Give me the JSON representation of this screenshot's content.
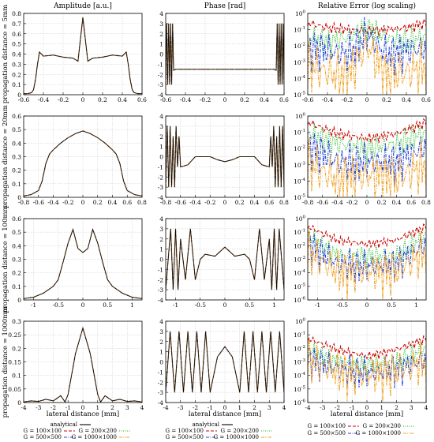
{
  "column_titles": [
    "Amplitude [a.u.]",
    "Phase [rad]",
    "Relative Error (log scaling)"
  ],
  "row_labels": [
    "propagation distance = 5mm",
    "propagation distance = 20mm",
    "propagation distance = 100mm",
    "propagation distance = 1000mm"
  ],
  "xlabel": "lateral distance [mm]",
  "colors": {
    "analytical": "#000000",
    "G100": "#cc0000",
    "G200": "#22bb22",
    "G500": "#1f3fd8",
    "G1000": "#f0a020"
  },
  "legends": [
    {
      "entries": [
        {
          "label": "analytical",
          "color": "#000000",
          "dash": "solid"
        },
        {
          "label": "G = 100×100",
          "color": "#cc0000",
          "dash": "dash"
        },
        {
          "label": "G = 200×200",
          "color": "#22bb22",
          "dash": "dot"
        },
        {
          "label": "G = 500×500",
          "color": "#1f3fd8",
          "dash": "dashdot"
        },
        {
          "label": "G = 1000×1000",
          "color": "#f0a020",
          "dash": "dashdotdot"
        }
      ]
    },
    {
      "entries": [
        {
          "label": "analytical",
          "color": "#000000",
          "dash": "solid"
        },
        {
          "label": "G = 100×100",
          "color": "#cc0000",
          "dash": "dash"
        },
        {
          "label": "G = 200×200",
          "color": "#22bb22",
          "dash": "dot"
        },
        {
          "label": "G = 500×500",
          "color": "#1f3fd8",
          "dash": "dashdot"
        },
        {
          "label": "G = 1000×1000",
          "color": "#f0a020",
          "dash": "dashdotdot"
        }
      ]
    },
    {
      "entries": [
        {
          "label": "G = 100×100",
          "color": "#cc0000",
          "dash": "dash"
        },
        {
          "label": "G = 200×200",
          "color": "#22bb22",
          "dash": "dot"
        },
        {
          "label": "G = 500×500",
          "color": "#1f3fd8",
          "dash": "dashdot"
        },
        {
          "label": "G = 1000×1000",
          "color": "#f0a020",
          "dash": "dashdotdot"
        }
      ]
    }
  ],
  "chart_data": [
    {
      "type": "line",
      "panel": "amplitude-5mm",
      "xlim": [
        -0.6,
        0.6
      ],
      "ylim": [
        0,
        0.8
      ],
      "xticks": [
        "-0.6",
        "-0.4",
        "-0.2",
        "0",
        "0.2",
        "0.4",
        "0.6"
      ],
      "yticks": [
        "0",
        "0.1",
        "0.2",
        "0.3",
        "0.4",
        "0.5",
        "0.6",
        "0.7",
        "0.8"
      ],
      "x": [
        -0.6,
        -0.56,
        -0.52,
        -0.5,
        -0.48,
        -0.46,
        -0.44,
        -0.42,
        -0.4,
        -0.3,
        -0.2,
        -0.1,
        -0.05,
        0,
        0.05,
        0.1,
        0.2,
        0.3,
        0.4,
        0.42,
        0.44,
        0.46,
        0.48,
        0.5,
        0.52,
        0.56,
        0.6
      ],
      "y": [
        0.01,
        0.01,
        0.02,
        0.05,
        0.15,
        0.3,
        0.42,
        0.4,
        0.38,
        0.39,
        0.37,
        0.36,
        0.33,
        0.76,
        0.33,
        0.36,
        0.37,
        0.39,
        0.38,
        0.4,
        0.42,
        0.3,
        0.15,
        0.05,
        0.02,
        0.01,
        0.01
      ]
    },
    {
      "type": "line",
      "panel": "phase-5mm",
      "xlim": [
        -0.6,
        0.6
      ],
      "ylim": [
        -4,
        4
      ],
      "xticks": [
        "-0.6",
        "-0.4",
        "-0.2",
        "0",
        "0.2",
        "0.4",
        "0.6"
      ],
      "yticks": [
        "-4",
        "-3",
        "-2",
        "-1",
        "0",
        "1",
        "2",
        "3",
        "4"
      ],
      "x": [
        -0.6,
        -0.59,
        -0.58,
        -0.57,
        -0.56,
        -0.55,
        -0.54,
        -0.53,
        -0.52,
        -0.5,
        -0.3,
        0,
        0.3,
        0.5,
        0.52,
        0.53,
        0.54,
        0.55,
        0.56,
        0.57,
        0.58,
        0.59,
        0.6
      ],
      "y": [
        -3,
        3,
        -3,
        3,
        -3,
        3,
        -3,
        3,
        -1.6,
        -1.5,
        -1.5,
        -1.5,
        -1.5,
        -1.5,
        -1.6,
        3,
        -3,
        3,
        -3,
        3,
        -3,
        3,
        -3
      ]
    },
    {
      "type": "line",
      "panel": "error-5mm",
      "log_y": true,
      "xlim": [
        -0.6,
        0.6
      ],
      "ylim": [
        -5,
        0
      ],
      "xticks": [
        "-0.6",
        "-0.4",
        "-0.2",
        "0",
        "0.2",
        "0.4",
        "0.6"
      ],
      "yticks": [
        "10^-5",
        "10^-4",
        "10^-3",
        "10^-2",
        "10^-1",
        "10^0"
      ],
      "x": [
        -0.6,
        -0.4,
        -0.2,
        0,
        0.2,
        0.4,
        0.6
      ],
      "series": [
        {
          "name": "G = 100×100",
          "log_values": [
            -0.5,
            -0.8,
            -0.9,
            -1.0,
            -0.9,
            -0.8,
            -0.5
          ]
        },
        {
          "name": "G = 200×200",
          "log_values": [
            -1.2,
            -1.5,
            -1.3,
            -0.6,
            -1.3,
            -1.5,
            -1.2
          ]
        },
        {
          "name": "G = 500×500",
          "log_values": [
            -1.8,
            -2.0,
            -2.2,
            -1.0,
            -2.2,
            -2.0,
            -1.8
          ]
        },
        {
          "name": "G = 1000×1000",
          "log_values": [
            -2.8,
            -3.2,
            -3.5,
            -1.5,
            -3.5,
            -3.2,
            -2.8
          ]
        }
      ]
    },
    {
      "type": "line",
      "panel": "amplitude-20mm",
      "xlim": [
        -0.8,
        0.8
      ],
      "ylim": [
        0,
        0.6
      ],
      "xticks": [
        "-0.8",
        "-0.6",
        "-0.4",
        "-0.2",
        "0",
        "0.2",
        "0.4",
        "0.6",
        "0.8"
      ],
      "yticks": [
        "0",
        "0.1",
        "0.2",
        "0.3",
        "0.4",
        "0.5",
        "0.6"
      ],
      "x": [
        -0.8,
        -0.7,
        -0.6,
        -0.55,
        -0.5,
        -0.45,
        -0.4,
        -0.3,
        -0.2,
        -0.1,
        0,
        0.1,
        0.2,
        0.3,
        0.4,
        0.45,
        0.5,
        0.55,
        0.6,
        0.7,
        0.8
      ],
      "y": [
        0.01,
        0.02,
        0.05,
        0.12,
        0.25,
        0.32,
        0.35,
        0.4,
        0.44,
        0.47,
        0.49,
        0.47,
        0.44,
        0.4,
        0.35,
        0.32,
        0.25,
        0.12,
        0.05,
        0.02,
        0.01
      ]
    },
    {
      "type": "line",
      "panel": "phase-20mm",
      "xlim": [
        -0.8,
        0.8
      ],
      "ylim": [
        -4,
        4
      ],
      "xticks": [
        "-0.8",
        "-0.6",
        "-0.4",
        "-0.2",
        "0",
        "0.2",
        "0.4",
        "0.6",
        "0.8"
      ],
      "yticks": [
        "-4",
        "-3",
        "-2",
        "-1",
        "0",
        "1",
        "2",
        "3",
        "4"
      ],
      "x": [
        -0.8,
        -0.78,
        -0.76,
        -0.74,
        -0.72,
        -0.7,
        -0.68,
        -0.66,
        -0.64,
        -0.62,
        -0.6,
        -0.5,
        -0.4,
        -0.3,
        -0.2,
        -0.1,
        0,
        0.1,
        0.2,
        0.3,
        0.4,
        0.5,
        0.6,
        0.62,
        0.64,
        0.66,
        0.68,
        0.7,
        0.72,
        0.74,
        0.76,
        0.78,
        0.8
      ],
      "y": [
        -3,
        3,
        -3,
        3,
        -3,
        2,
        -3,
        3,
        -1,
        2,
        -1,
        -0.8,
        0,
        0,
        0,
        -0.3,
        -0.5,
        -0.3,
        0,
        0,
        0,
        -0.8,
        -1,
        2,
        -1,
        3,
        -3,
        2,
        -3,
        3,
        -3,
        3,
        -3
      ]
    },
    {
      "type": "line",
      "panel": "error-20mm",
      "log_y": true,
      "xlim": [
        -0.8,
        0.8
      ],
      "ylim": [
        -5,
        0
      ],
      "xticks": [
        "-0.8",
        "-0.6",
        "-0.4",
        "-0.2",
        "0",
        "0.2",
        "0.4",
        "0.6",
        "0.8"
      ],
      "yticks": [
        "10^-5",
        "10^-4",
        "10^-3",
        "10^-2",
        "10^-1",
        "10^0"
      ],
      "x": [
        -0.8,
        -0.4,
        0,
        0.4,
        0.8
      ],
      "series": [
        {
          "name": "G = 100×100",
          "log_values": [
            -0.3,
            -1.0,
            -1.3,
            -1.0,
            -0.3
          ]
        },
        {
          "name": "G = 200×200",
          "log_values": [
            -0.8,
            -1.5,
            -1.8,
            -1.5,
            -0.8
          ]
        },
        {
          "name": "G = 500×500",
          "log_values": [
            -1.5,
            -2.5,
            -2.5,
            -2.5,
            -1.5
          ]
        },
        {
          "name": "G = 1000×1000",
          "log_values": [
            -2.5,
            -3.5,
            -3.2,
            -3.5,
            -2.5
          ]
        }
      ]
    },
    {
      "type": "line",
      "panel": "amplitude-100mm",
      "xlim": [
        -1.2,
        1.2
      ],
      "ylim": [
        0,
        0.6
      ],
      "xticks": [
        "-1",
        "-0.5",
        "0",
        "0.5",
        "1"
      ],
      "yticks": [
        "0",
        "0.1",
        "0.2",
        "0.3",
        "0.4",
        "0.5",
        "0.6"
      ],
      "x": [
        -1.2,
        -1,
        -0.8,
        -0.6,
        -0.5,
        -0.4,
        -0.3,
        -0.2,
        -0.1,
        0,
        0.1,
        0.2,
        0.3,
        0.4,
        0.5,
        0.6,
        0.8,
        1,
        1.2
      ],
      "y": [
        0.01,
        0.02,
        0.05,
        0.1,
        0.15,
        0.28,
        0.42,
        0.52,
        0.38,
        0.35,
        0.38,
        0.52,
        0.42,
        0.28,
        0.15,
        0.1,
        0.05,
        0.02,
        0.01
      ]
    },
    {
      "type": "line",
      "panel": "phase-100mm",
      "xlim": [
        -1.2,
        1.2
      ],
      "ylim": [
        -4,
        4
      ],
      "xticks": [
        "-1",
        "-0.5",
        "0",
        "0.5",
        "1"
      ],
      "yticks": [
        "-4",
        "-3",
        "-2",
        "-1",
        "0",
        "1",
        "2",
        "3",
        "4"
      ],
      "x": [
        -1.2,
        -1.1,
        -1.05,
        -1,
        -0.95,
        -0.9,
        -0.8,
        -0.7,
        -0.6,
        -0.5,
        -0.4,
        -0.2,
        0,
        0.2,
        0.4,
        0.5,
        0.6,
        0.7,
        0.8,
        0.9,
        0.95,
        1,
        1.05,
        1.1,
        1.2
      ],
      "y": [
        -3,
        3,
        -3,
        3,
        -3,
        2,
        -2,
        3,
        -2,
        0,
        0.5,
        0.3,
        1.2,
        0.3,
        0.5,
        0,
        -2,
        3,
        -2,
        2,
        -3,
        3,
        -3,
        3,
        -3
      ]
    },
    {
      "type": "line",
      "panel": "error-100mm",
      "log_y": true,
      "xlim": [
        -1.2,
        1.2
      ],
      "ylim": [
        -6,
        0
      ],
      "xticks": [
        "-1",
        "-0.5",
        "0",
        "0.5",
        "1"
      ],
      "yticks": [
        "10^-6",
        "10^-5",
        "10^-4",
        "10^-3",
        "10^-2",
        "10^-1",
        "10^0"
      ],
      "x": [
        -1.2,
        -0.6,
        0,
        0.6,
        1.2
      ],
      "series": [
        {
          "name": "G = 100×100",
          "log_values": [
            -0.5,
            -1.5,
            -1.8,
            -1.5,
            -0.5
          ]
        },
        {
          "name": "G = 200×200",
          "log_values": [
            -1.0,
            -2.5,
            -2.5,
            -2.5,
            -1.0
          ]
        },
        {
          "name": "G = 500×500",
          "log_values": [
            -1.5,
            -3.0,
            -3.2,
            -3.0,
            -1.5
          ]
        },
        {
          "name": "G = 1000×1000",
          "log_values": [
            -2.0,
            -3.5,
            -3.5,
            -3.5,
            -2.0
          ]
        }
      ]
    },
    {
      "type": "line",
      "panel": "amplitude-1000mm",
      "xlim": [
        -4,
        4
      ],
      "ylim": [
        0,
        0.3
      ],
      "xticks": [
        "-4",
        "-3",
        "-2",
        "-1",
        "0",
        "1",
        "2",
        "3",
        "4"
      ],
      "yticks": [
        "0",
        "0.05",
        "0.1",
        "0.15",
        "0.2",
        "0.25",
        "0.3"
      ],
      "x": [
        -4,
        -3.5,
        -3,
        -2.5,
        -2,
        -1.5,
        -1.2,
        -1,
        -0.5,
        0,
        0.5,
        1,
        1.2,
        1.5,
        2,
        2.5,
        3,
        3.5,
        4
      ],
      "y": [
        0.002,
        0.006,
        0.004,
        0.012,
        0.006,
        0.025,
        0.002,
        0.03,
        0.18,
        0.275,
        0.18,
        0.03,
        0.002,
        0.025,
        0.006,
        0.012,
        0.004,
        0.006,
        0.002
      ]
    },
    {
      "type": "line",
      "panel": "phase-1000mm",
      "xlim": [
        -4,
        4
      ],
      "ylim": [
        -4,
        4
      ],
      "xticks": [
        "-4",
        "-3",
        "-2",
        "-1",
        "0",
        "1",
        "2",
        "3",
        "4"
      ],
      "yticks": [
        "-4",
        "-3",
        "-2",
        "-1",
        "0",
        "1",
        "2",
        "3",
        "4"
      ],
      "x": [
        -4,
        -3.7,
        -3.4,
        -3.1,
        -2.8,
        -2.5,
        -2.2,
        -1.9,
        -1.6,
        -1.3,
        -1,
        -0.5,
        0,
        0.5,
        1,
        1.3,
        1.6,
        1.9,
        2.2,
        2.5,
        2.8,
        3.1,
        3.4,
        3.7,
        4
      ],
      "y": [
        -3,
        3,
        -3,
        3,
        -3,
        3,
        -3,
        3,
        -3,
        3,
        -3,
        0.5,
        1.5,
        0.5,
        -3,
        3,
        -3,
        3,
        -3,
        3,
        -3,
        3,
        -3,
        3,
        -3
      ]
    },
    {
      "type": "line",
      "panel": "error-1000mm",
      "log_y": true,
      "xlim": [
        -4,
        4
      ],
      "ylim": [
        -6,
        0
      ],
      "xticks": [
        "-4",
        "-3",
        "-2",
        "-1",
        "0",
        "1",
        "2",
        "3",
        "4"
      ],
      "yticks": [
        "10^-6",
        "10^-5",
        "10^-4",
        "10^-3",
        "10^-2",
        "10^-1",
        "10^0"
      ],
      "x": [
        -4,
        -2,
        0,
        2,
        4
      ],
      "series": [
        {
          "name": "G = 100×100",
          "log_values": [
            -1.2,
            -2.0,
            -2.5,
            -2.0,
            -1.2
          ]
        },
        {
          "name": "G = 200×200",
          "log_values": [
            -1.8,
            -2.8,
            -3.0,
            -2.8,
            -1.8
          ]
        },
        {
          "name": "G = 500×500",
          "log_values": [
            -2.5,
            -3.2,
            -3.5,
            -3.2,
            -2.5
          ]
        },
        {
          "name": "G = 1000×1000",
          "log_values": [
            -2.5,
            -3.3,
            -3.6,
            -3.3,
            -2.5
          ]
        }
      ]
    }
  ]
}
